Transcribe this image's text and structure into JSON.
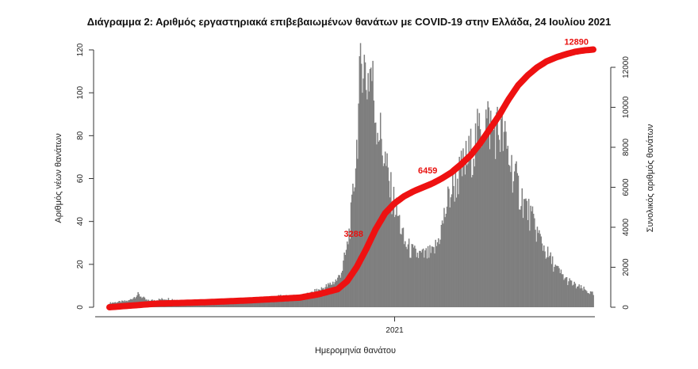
{
  "chart_data": {
    "type": "bar",
    "title": "Διάγραμμα 2: Αριθμός εργαστηριακά επιβεβαιωμένων θανάτων με COVID-19 στην Ελλάδα, 24 Ιουλίου 2021",
    "xlabel": "Ημερομηνία θανάτου",
    "ylabel": "Αριθμός νέων θανάτων",
    "ylabel_right": "Συνολικός αριθμός θανάτων",
    "x_ticks": [
      {
        "label": "2021",
        "day": 300
      }
    ],
    "ylim": [
      0,
      125
    ],
    "y_ticks": [
      0,
      20,
      40,
      60,
      80,
      100,
      120
    ],
    "y2lim": [
      0,
      13000
    ],
    "y2_ticks": [
      0,
      2000,
      4000,
      6000,
      8000,
      10000,
      12000
    ],
    "days": 510,
    "grid": false,
    "legend": "none",
    "bar_color": "#7f7f7f",
    "line_color": "#ee1111",
    "daily_anchors": [
      [
        0,
        2
      ],
      [
        20,
        3
      ],
      [
        30,
        6
      ],
      [
        40,
        3
      ],
      [
        60,
        4
      ],
      [
        80,
        3
      ],
      [
        100,
        3
      ],
      [
        120,
        3
      ],
      [
        140,
        4
      ],
      [
        160,
        4
      ],
      [
        180,
        5
      ],
      [
        200,
        5
      ],
      [
        210,
        6
      ],
      [
        220,
        8
      ],
      [
        230,
        10
      ],
      [
        240,
        13
      ],
      [
        245,
        18
      ],
      [
        250,
        28
      ],
      [
        255,
        45
      ],
      [
        260,
        75
      ],
      [
        263,
        100
      ],
      [
        266,
        121
      ],
      [
        270,
        105
      ],
      [
        275,
        112
      ],
      [
        280,
        90
      ],
      [
        285,
        80
      ],
      [
        290,
        68
      ],
      [
        295,
        55
      ],
      [
        300,
        48
      ],
      [
        305,
        40
      ],
      [
        310,
        30
      ],
      [
        320,
        25
      ],
      [
        330,
        24
      ],
      [
        340,
        25
      ],
      [
        345,
        30
      ],
      [
        350,
        38
      ],
      [
        355,
        48
      ],
      [
        360,
        55
      ],
      [
        370,
        63
      ],
      [
        380,
        72
      ],
      [
        390,
        82
      ],
      [
        395,
        88
      ],
      [
        400,
        85
      ],
      [
        410,
        82
      ],
      [
        415,
        78
      ],
      [
        420,
        70
      ],
      [
        430,
        55
      ],
      [
        440,
        45
      ],
      [
        450,
        35
      ],
      [
        460,
        25
      ],
      [
        470,
        18
      ],
      [
        480,
        13
      ],
      [
        490,
        10
      ],
      [
        500,
        8
      ],
      [
        509,
        6
      ]
    ],
    "cumulative_anchors": [
      [
        0,
        0
      ],
      [
        50,
        180
      ],
      [
        100,
        250
      ],
      [
        150,
        350
      ],
      [
        200,
        480
      ],
      [
        220,
        650
      ],
      [
        240,
        900
      ],
      [
        250,
        1300
      ],
      [
        260,
        2000
      ],
      [
        270,
        2900
      ],
      [
        280,
        3900
      ],
      [
        290,
        4700
      ],
      [
        300,
        5200
      ],
      [
        310,
        5550
      ],
      [
        320,
        5800
      ],
      [
        330,
        6000
      ],
      [
        340,
        6200
      ],
      [
        350,
        6450
      ],
      [
        360,
        6750
      ],
      [
        370,
        7150
      ],
      [
        380,
        7600
      ],
      [
        390,
        8200
      ],
      [
        400,
        8900
      ],
      [
        410,
        9600
      ],
      [
        420,
        10400
      ],
      [
        430,
        11100
      ],
      [
        440,
        11600
      ],
      [
        450,
        12000
      ],
      [
        460,
        12300
      ],
      [
        470,
        12500
      ],
      [
        480,
        12650
      ],
      [
        490,
        12780
      ],
      [
        500,
        12850
      ],
      [
        509,
        12890
      ]
    ],
    "annotations": [
      {
        "text": "3288",
        "day": 272,
        "y2": 3288
      },
      {
        "text": "6459",
        "day": 350,
        "y2": 6459
      },
      {
        "text": "12890",
        "day": 509,
        "y2": 12890
      }
    ]
  }
}
